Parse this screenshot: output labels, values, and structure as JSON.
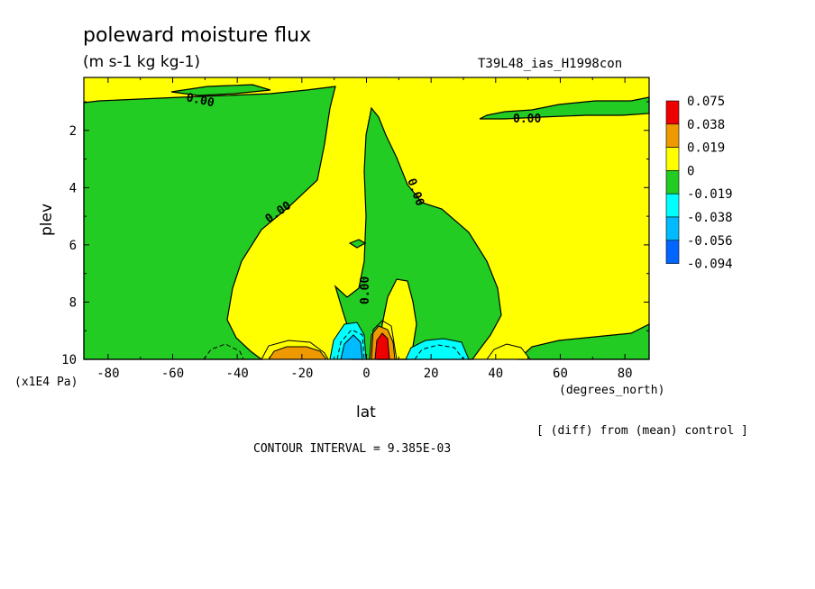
{
  "chart_data": {
    "type": "heatmap",
    "title": "poleward moisture flux",
    "units": "(m s-1 kg kg-1)",
    "run_label": "T39L48_ias_H1998con",
    "xlabel": "lat",
    "x_unit_label": "(degrees_north)",
    "ylabel": "plev",
    "y_unit_label": "(x1E4 Pa)",
    "x_ticks": [
      "-80",
      "-60",
      "-40",
      "-20",
      "0",
      "20",
      "40",
      "60",
      "80"
    ],
    "x_tick_values": [
      -80,
      -60,
      -40,
      -20,
      0,
      20,
      40,
      60,
      80
    ],
    "y_ticks": [
      "2",
      "4",
      "6",
      "8",
      "10"
    ],
    "y_tick_values": [
      2,
      4,
      6,
      8,
      10
    ],
    "xlim": [
      -87.5,
      87.5
    ],
    "ylim": [
      10,
      0.15
    ],
    "colorbar": {
      "labels": [
        "0.075",
        "0.038",
        "0.019",
        "0",
        "-0.019",
        "-0.038",
        "-0.056",
        "-0.094"
      ],
      "colors": [
        "#ee0000",
        "#ee9900",
        "#ffff00",
        "#22cc22",
        "#00ffff",
        "#00bbff",
        "#0066ff"
      ]
    },
    "contour_labels": [
      "0.00",
      "0.00",
      "0.00",
      "0.00",
      "0.00"
    ],
    "note": "[ (diff) from (mean) control ]",
    "contour_interval": "CONTOUR INTERVAL = 9.385E-03"
  }
}
